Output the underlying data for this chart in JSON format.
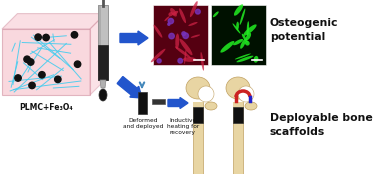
{
  "label_plmc": "PLMC+Fe₃O₄",
  "label_osteo": "Osteogenic\npotential",
  "label_deploy": "Deployable bone\nscaffolds",
  "label_deformed": "Deformed\nand deployed",
  "label_inductive": "Inductive\nheating for\nrecovery",
  "bg_color": "#ffffff",
  "cube_face_color": "#f5b8c4",
  "cube_edge_color": "#cc8899",
  "network_color": "#44ccee",
  "nanoparticle_color": "#111111",
  "syringe_light_color": "#bbbbbb",
  "syringe_dark_color": "#222222",
  "arrow_color": "#2255cc",
  "micro_img1_bg": "#550011",
  "micro_img2_bg": "#001100",
  "bone_color": "#e8d5a3",
  "scaffold_color": "#111111",
  "text_color": "#111111",
  "magnet_color_r": "#cc2222",
  "magnet_color_b": "#2222cc"
}
